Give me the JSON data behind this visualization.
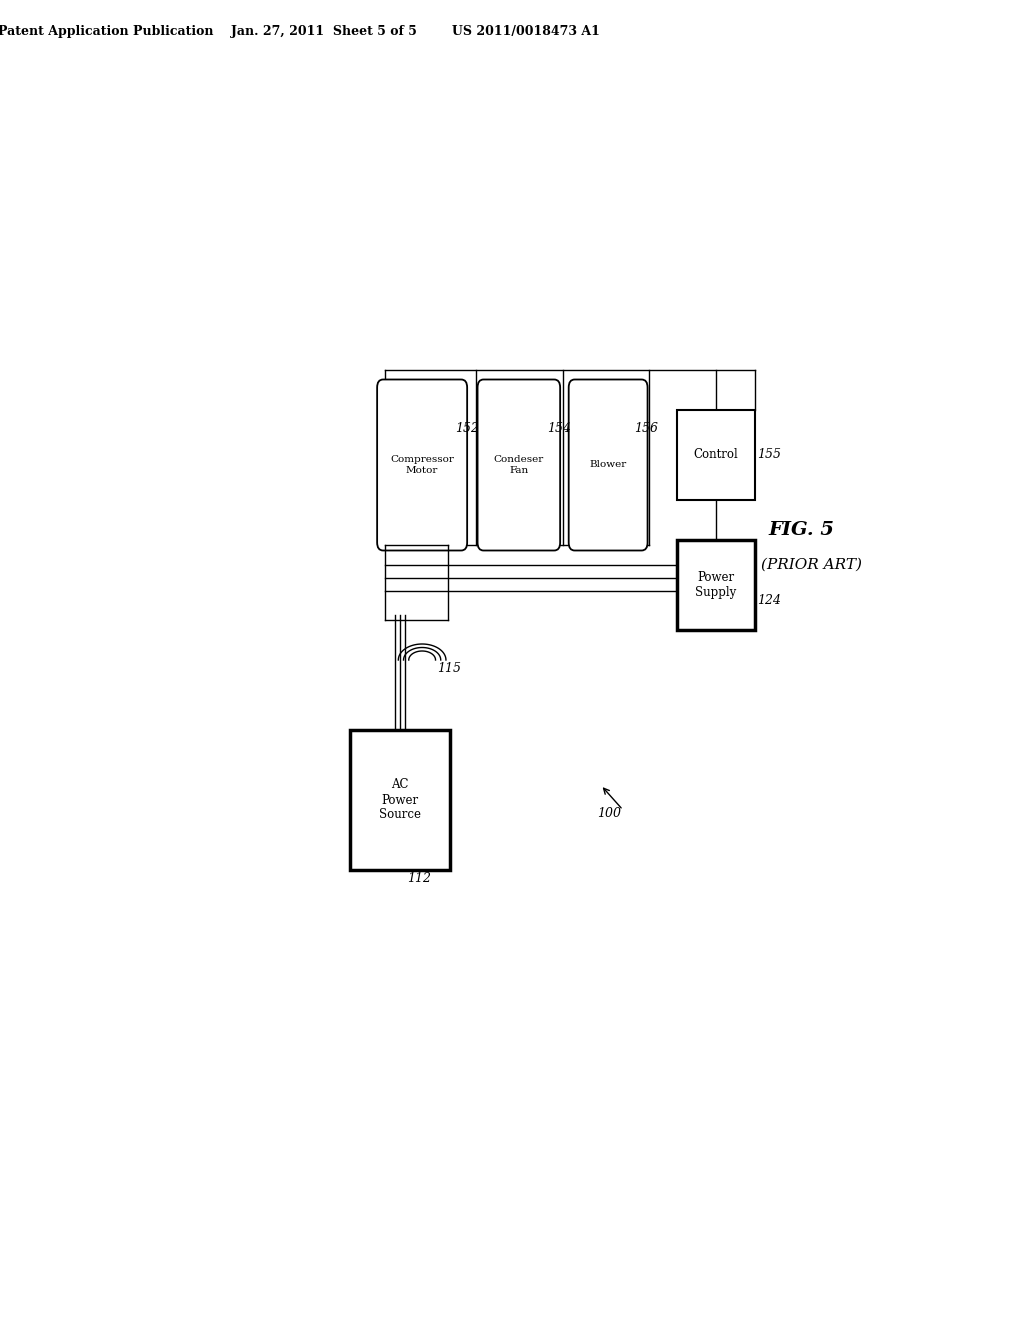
{
  "title_line": "Patent Application Publication    Jan. 27, 2011  Sheet 5 of 5        US 2011/0018473 A1",
  "fig_label": "FIG. 5",
  "fig_sublabel": "(PRIOR ART)",
  "bg_color": "#ffffff",
  "text_color": "#000000",
  "components": {
    "compressor_motor": {
      "label": "Compressor\nMotor",
      "ref": "152"
    },
    "condenser_fan": {
      "label": "Condeser\nFan",
      "ref": "154"
    },
    "blower": {
      "label": "Blower",
      "ref": "156"
    },
    "control": {
      "label": "Control",
      "ref": "155"
    },
    "power_supply": {
      "label": "Power\nSupply",
      "ref": "124"
    },
    "ac_source": {
      "label": "AC\nPower\nSource",
      "ref": "112"
    }
  },
  "system_ref": "100",
  "wire_ref": "115"
}
